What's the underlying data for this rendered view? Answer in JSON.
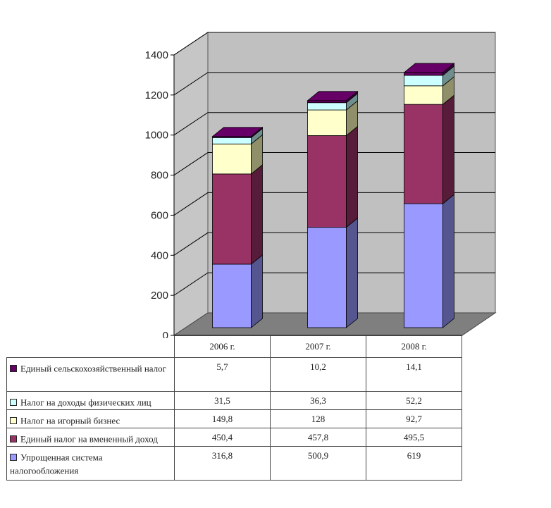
{
  "chart_data": {
    "type": "bar",
    "stacked": true,
    "three_d": true,
    "categories": [
      "2006 г.",
      "2007 г.",
      "2008 г."
    ],
    "ylim": [
      0,
      1400
    ],
    "yticks": [
      "0",
      "200",
      "400",
      "600",
      "800",
      "1000",
      "1200",
      "1400"
    ],
    "grid": true,
    "series": [
      {
        "name": "Упрощенная система налогообложения",
        "values": [
          "316,8",
          "500,9",
          "619"
        ],
        "numeric": [
          316.8,
          500.9,
          619
        ],
        "color": "#9999ff",
        "side": "#55558f"
      },
      {
        "name": "Единый налог на вмененный доход",
        "values": [
          "450,4",
          "457,8",
          "495,5"
        ],
        "numeric": [
          450.4,
          457.8,
          495.5
        ],
        "color": "#993366",
        "side": "#561c39"
      },
      {
        "name": "Налог на игорный бизнес",
        "values": [
          "149,8",
          "128",
          "92,7"
        ],
        "numeric": [
          149.8,
          128,
          92.7
        ],
        "color": "#ffffcc",
        "side": "#8f8f6a"
      },
      {
        "name": "Налог на доходы физических лиц",
        "values": [
          "31,5",
          "36,3",
          "52,2"
        ],
        "numeric": [
          31.5,
          36.3,
          52.2
        ],
        "color": "#ccffff",
        "side": "#6f8f8f"
      },
      {
        "name": "Единый сельскохозяйственный налог",
        "values": [
          "5,7",
          "10,2",
          "14,1"
        ],
        "numeric": [
          5.7,
          10.2,
          14.1
        ],
        "color": "#660066",
        "side": "#3a003a"
      }
    ],
    "table_order": [
      4,
      3,
      2,
      1,
      0
    ]
  }
}
